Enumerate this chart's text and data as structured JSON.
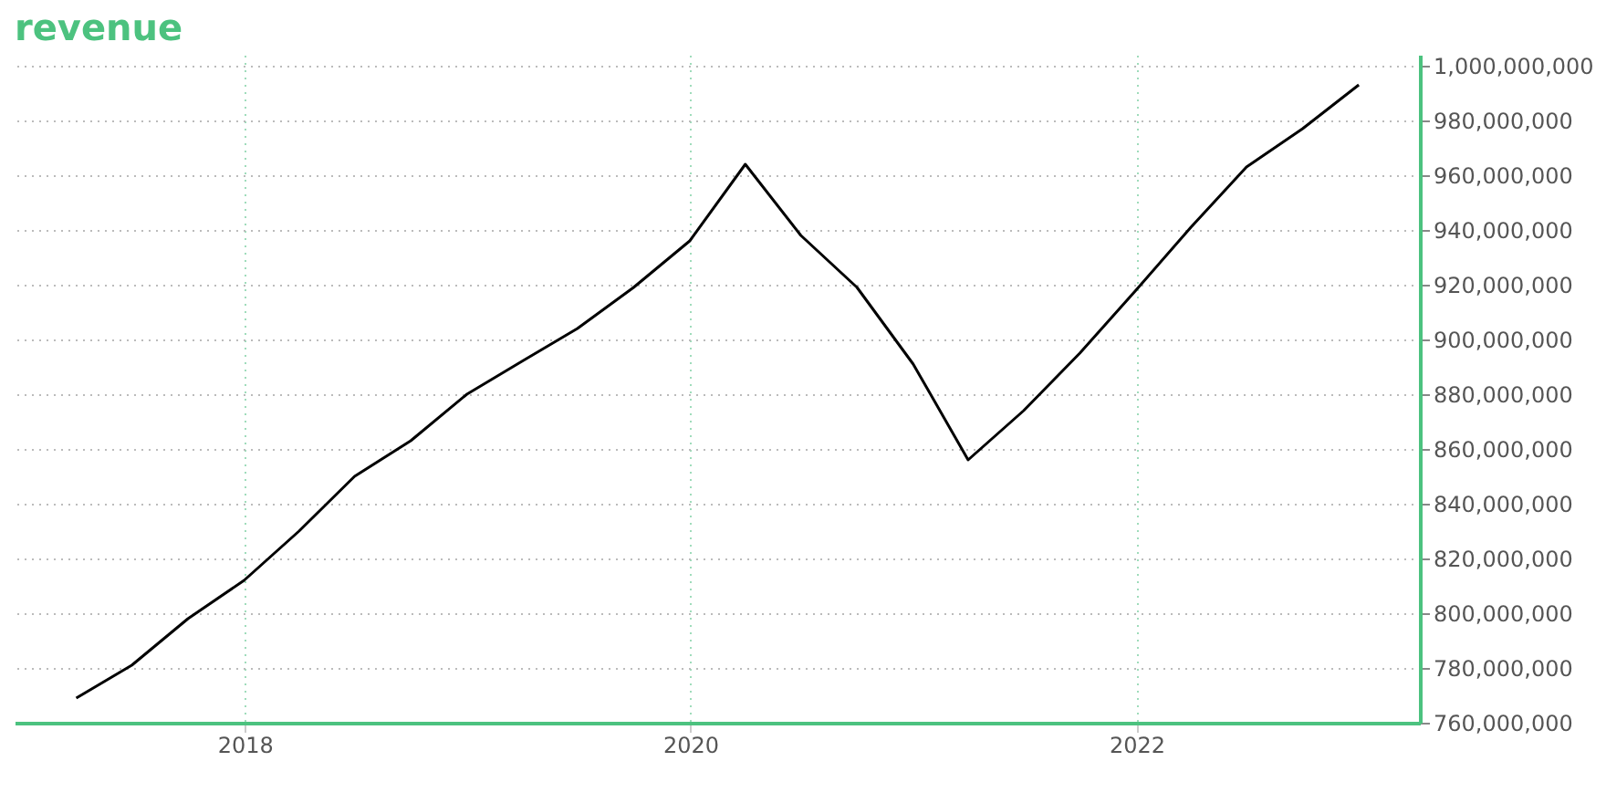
{
  "chart_data": {
    "type": "line",
    "title": "revenue",
    "x": [
      "2017-03-31",
      "2017-06-30",
      "2017-09-30",
      "2017-12-31",
      "2018-03-31",
      "2018-06-30",
      "2018-09-30",
      "2018-12-31",
      "2019-03-31",
      "2019-06-30",
      "2019-09-30",
      "2019-12-31",
      "2020-03-31",
      "2020-06-30",
      "2020-09-30",
      "2020-12-31",
      "2021-03-31",
      "2021-06-30",
      "2021-09-30",
      "2021-12-31",
      "2022-03-31",
      "2022-06-30",
      "2022-09-30",
      "2022-12-31"
    ],
    "series": [
      {
        "color": "#000000",
        "values": [
          769000000,
          781000000,
          798000000,
          812000000,
          830000000,
          850000000,
          863000000,
          880000000,
          892000000,
          904000000,
          919000000,
          936000000,
          964000000,
          938000000,
          919000000,
          891000000,
          856000000,
          874000000,
          895000000,
          918000000,
          941000000,
          963000000,
          977000000,
          993000000
        ]
      }
    ],
    "xlim": [
      "2016-12-20",
      "2023-04-10"
    ],
    "ylim": [
      760000000,
      1004000000
    ],
    "xticks": [
      "2018",
      "2020",
      "2022"
    ],
    "yticks": [
      {
        "value": 760000000,
        "label": "760,000,000"
      },
      {
        "value": 780000000,
        "label": "780,000,000"
      },
      {
        "value": 800000000,
        "label": "800,000,000"
      },
      {
        "value": 820000000,
        "label": "820,000,000"
      },
      {
        "value": 840000000,
        "label": "840,000,000"
      },
      {
        "value": 860000000,
        "label": "860,000,000"
      },
      {
        "value": 880000000,
        "label": "880,000,000"
      },
      {
        "value": 900000000,
        "label": "900,000,000"
      },
      {
        "value": 920000000,
        "label": "920,000,000"
      },
      {
        "value": 940000000,
        "label": "940,000,000"
      },
      {
        "value": 960000000,
        "label": "960,000,000"
      },
      {
        "value": 980000000,
        "label": "980,000,000"
      },
      {
        "value": 1000000000,
        "label": "1,000,000,000"
      }
    ],
    "grid": true,
    "line_style": "solid"
  }
}
